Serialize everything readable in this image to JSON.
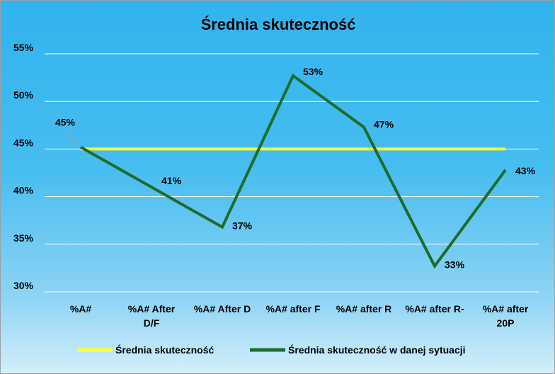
{
  "chart_data": {
    "type": "line",
    "title": "Średnia skuteczność",
    "xlabel": "",
    "ylabel": "",
    "categories": [
      [
        "%A#"
      ],
      [
        "%A# After",
        "D/F"
      ],
      [
        "%A# After D"
      ],
      [
        "%A# after F"
      ],
      [
        "%A# after R"
      ],
      [
        "%A# after R-"
      ],
      [
        "%A# after",
        "20P"
      ]
    ],
    "ylim": [
      0.3,
      0.55
    ],
    "yticks": [
      {
        "value": 0.3,
        "label": "30%"
      },
      {
        "value": 0.35,
        "label": "35%"
      },
      {
        "value": 0.4,
        "label": "40%"
      },
      {
        "value": 0.45,
        "label": "45%"
      },
      {
        "value": 0.5,
        "label": "50%"
      },
      {
        "value": 0.55,
        "label": "55%"
      }
    ],
    "grid": true,
    "legend": "bottom",
    "series": [
      {
        "name": "Średnia skuteczność",
        "color": "#ffff33",
        "values": [
          0.45,
          0.45,
          0.45,
          0.45,
          0.45,
          0.45,
          0.45
        ],
        "data_labels": null
      },
      {
        "name": "Średnia skuteczność w danej sytuacji",
        "color": "#1e6b2a",
        "values": [
          0.452,
          0.41,
          0.368,
          0.527,
          0.473,
          0.327,
          0.428
        ],
        "data_labels": [
          "45%",
          "41%",
          "37%",
          "53%",
          "47%",
          "33%",
          "43%"
        ]
      }
    ]
  }
}
